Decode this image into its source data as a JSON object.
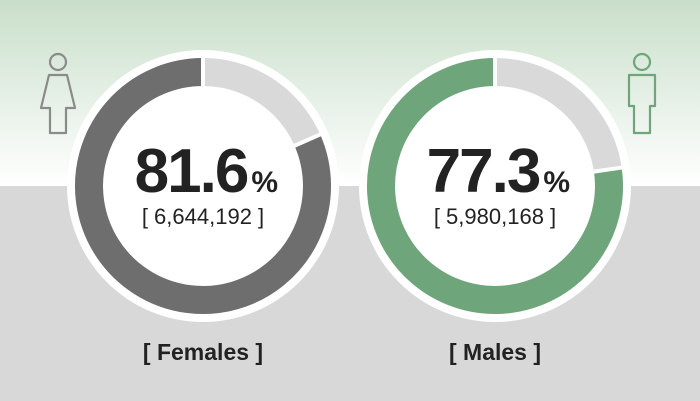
{
  "chart_data": [
    {
      "type": "donut",
      "name": "[ Females ]",
      "value": 81.6,
      "unit": "%",
      "count": {
        "value": 6644192,
        "label": "[ 6,644,192 ]"
      },
      "ylim": [
        0,
        100
      ],
      "color": "#6e6e6e",
      "track_color": "#d9d9d9",
      "icon": "female",
      "icon_color": "#8a8a8a"
    },
    {
      "type": "donut",
      "name": "[ Males ]",
      "value": 77.3,
      "unit": "%",
      "count": {
        "value": 5980168,
        "label": "[ 5,980,168 ]"
      },
      "ylim": [
        0,
        100
      ],
      "color": "#6fa57b",
      "track_color": "#d9d9d9",
      "icon": "male",
      "icon_color": "#6fa57b"
    }
  ]
}
